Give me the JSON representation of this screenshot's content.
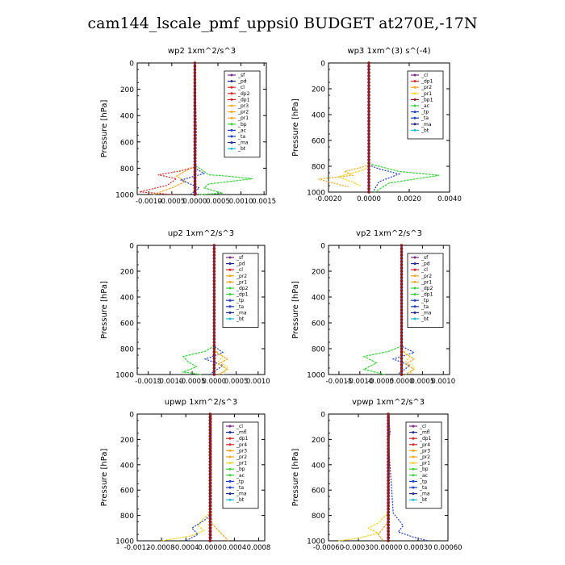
{
  "title": "cam144_lscale_pmf_uppsi0  BUDGET at270E,-17N",
  "colors": {
    "red": "#d62728",
    "orange": "#f5a623",
    "yellow": "#f2d52e",
    "green": "#3dd13d",
    "blue": "#1f3fbf",
    "navy": "#1f2a8a",
    "purple": "#7a2a8a",
    "cyan": "#20c0d0",
    "darkred": "#8b1a1a"
  },
  "chart_data": [
    {
      "type": "line",
      "title": "wp2   1xm^2/s^3",
      "ylabel": "Pressure [hPa]",
      "ylim": [
        1000,
        0
      ],
      "xlim": [
        -0.00125,
        0.00155
      ],
      "xticks": [
        "-0.0010",
        "-0.0005",
        "0.0000",
        "0.0005",
        "0.0010",
        "0.0015"
      ],
      "xtick_vals": [
        -0.001,
        -0.0005,
        0,
        0.0005,
        0.001,
        0.0015
      ],
      "yticks": [
        "0",
        "200",
        "400",
        "600",
        "800",
        "1000"
      ],
      "legend": [
        "_sf",
        "_pd",
        "_cl",
        "_dp2",
        "_dp1",
        "_pr3",
        "_pr2",
        "_pr1",
        "_bp",
        "_ac",
        "_ta",
        "_ma",
        "_bt"
      ],
      "legend_colors": [
        "purple",
        "navy",
        "red",
        "red",
        "red",
        "orange",
        "orange",
        "orange",
        "green",
        "blue",
        "blue",
        "navy",
        "cyan"
      ],
      "series": [
        {
          "color": "green",
          "x": [
            0,
            0,
            0.0001,
            0.0003,
            0.0007,
            0.00125,
            0.0003,
            0.0002,
            0.0006,
            0.0001
          ],
          "y": [
            0,
            780,
            800,
            850,
            860,
            880,
            920,
            950,
            990,
            1000
          ]
        },
        {
          "color": "red",
          "x": [
            0,
            0,
            -0.0003,
            -0.0008,
            -0.0004,
            -0.0006,
            -0.0012,
            -0.0005
          ],
          "y": [
            0,
            790,
            820,
            850,
            880,
            930,
            980,
            1000
          ]
        },
        {
          "color": "orange",
          "x": [
            0,
            0,
            -0.0002,
            -0.0004,
            -0.0002,
            -0.0005,
            -0.0009
          ],
          "y": [
            0,
            790,
            820,
            860,
            900,
            950,
            1000
          ]
        },
        {
          "color": "blue",
          "x": [
            0,
            0,
            0.0002,
            -0.0003,
            0.0001,
            -0.0001
          ],
          "y": [
            0,
            800,
            840,
            890,
            950,
            1000
          ]
        },
        {
          "color": "purple",
          "x": [
            0,
            3e-05,
            2e-05,
            3e-05
          ],
          "y": [
            0,
            500,
            900,
            1000
          ]
        }
      ]
    },
    {
      "type": "line",
      "title": "wp3   1xm^(3) s^(-4)",
      "ylabel": "Pressure [hPa]",
      "ylim": [
        1000,
        0
      ],
      "xlim": [
        -0.002,
        0.004
      ],
      "xticks": [
        "-0.0020",
        "0.0000",
        "0.0020",
        "0.0040"
      ],
      "xtick_vals": [
        -0.002,
        0,
        0.002,
        0.004
      ],
      "yticks": [
        "0",
        "200",
        "400",
        "600",
        "800",
        "1000"
      ],
      "legend": [
        "_cl",
        "_dp1",
        "_pr2",
        "_pr1",
        "_bp1",
        "_ac",
        "_tp",
        "_ta",
        "_ma",
        "_bt"
      ],
      "legend_colors": [
        "purple",
        "red",
        "orange",
        "yellow",
        "darkred",
        "green",
        "blue",
        "blue",
        "navy",
        "cyan"
      ],
      "series": [
        {
          "color": "green",
          "x": [
            0,
            0,
            0.0005,
            0.0015,
            0.0035,
            0.001,
            0.0003
          ],
          "y": [
            0,
            780,
            800,
            840,
            870,
            930,
            1000
          ]
        },
        {
          "color": "orange",
          "x": [
            0,
            0,
            -0.0004,
            -0.0012,
            -0.0008,
            -0.0025,
            -0.001
          ],
          "y": [
            0,
            790,
            810,
            840,
            870,
            900,
            960
          ]
        },
        {
          "color": "yellow",
          "x": [
            0,
            0,
            -0.0003,
            -0.0015,
            -0.0004
          ],
          "y": [
            0,
            800,
            830,
            880,
            950
          ]
        },
        {
          "color": "blue",
          "x": [
            0,
            0,
            0.0005,
            0.0015,
            0.0005,
            0.0002
          ],
          "y": [
            0,
            790,
            820,
            860,
            920,
            1000
          ]
        },
        {
          "color": "red",
          "x": [
            0,
            0
          ],
          "y": [
            0,
            1000
          ]
        }
      ]
    },
    {
      "type": "line",
      "title": "up2   1xm^2/s^3",
      "ylabel": "Pressure [hPa]",
      "ylim": [
        1000,
        0
      ],
      "xlim": [
        -0.00175,
        0.00115
      ],
      "xticks": [
        "-0.0015",
        "-0.0010",
        "-0.0005",
        "0.0000",
        "0.0005",
        "0.0010"
      ],
      "xtick_vals": [
        -0.0015,
        -0.001,
        -0.0005,
        0,
        0.0005,
        0.001
      ],
      "yticks": [
        "0",
        "200",
        "400",
        "600",
        "800",
        "1000"
      ],
      "legend": [
        "_sf",
        "_pd",
        "_cl",
        "_pr2",
        "_pr1",
        "_dp2",
        "_dp1",
        "_tp",
        "_ta",
        "_ma",
        "_bt"
      ],
      "legend_colors": [
        "purple",
        "navy",
        "red",
        "orange",
        "orange",
        "green",
        "green",
        "blue",
        "blue",
        "navy",
        "cyan"
      ],
      "series": [
        {
          "color": "green",
          "x": [
            0,
            0,
            -0.0002,
            -0.0007,
            -0.0006,
            -0.0004,
            -0.0007,
            -0.0003
          ],
          "y": [
            0,
            780,
            820,
            860,
            900,
            940,
            980,
            1000
          ]
        },
        {
          "color": "blue",
          "x": [
            0,
            0,
            0.0002,
            -0.0002,
            0.0002,
            -0.0001
          ],
          "y": [
            0,
            780,
            830,
            880,
            930,
            1000
          ]
        },
        {
          "color": "orange",
          "x": [
            0,
            0,
            0.0001,
            0.0003,
            0.0001,
            0.0003,
            0.0001
          ],
          "y": [
            0,
            800,
            840,
            880,
            920,
            960,
            1000
          ]
        },
        {
          "color": "yellow",
          "x": [
            0,
            0,
            0.0002,
            0.0001,
            0.0003,
            0.0002
          ],
          "y": [
            0,
            820,
            860,
            900,
            940,
            1000
          ]
        },
        {
          "color": "darkred",
          "x": [
            0,
            0
          ],
          "y": [
            0,
            1000
          ]
        }
      ]
    },
    {
      "type": "line",
      "title": "vp2   1xm^2/s^3",
      "ylabel": "Pressure [hPa]",
      "ylim": [
        1000,
        0
      ],
      "xlim": [
        -0.00175,
        0.00115
      ],
      "xticks": [
        "-0.0015",
        "-0.0010",
        "-0.0005",
        "0.0000",
        "0.0005",
        "0.0010"
      ],
      "xtick_vals": [
        -0.0015,
        -0.001,
        -0.0005,
        0,
        0.0005,
        0.001
      ],
      "yticks": [
        "0",
        "200",
        "400",
        "600",
        "800",
        "1000"
      ],
      "legend": [
        "_sf",
        "_pd",
        "_cl",
        "_pr2",
        "_pr1",
        "_dp2",
        "_dp1",
        "_tp",
        "_ta",
        "_ma",
        "_bt"
      ],
      "legend_colors": [
        "purple",
        "navy",
        "red",
        "orange",
        "orange",
        "green",
        "green",
        "blue",
        "blue",
        "navy",
        "cyan"
      ],
      "series": [
        {
          "color": "green",
          "x": [
            0,
            0,
            -0.0003,
            -0.0009,
            -0.0006,
            -0.0009,
            -0.0004
          ],
          "y": [
            0,
            780,
            820,
            860,
            910,
            960,
            1000
          ]
        },
        {
          "color": "blue",
          "x": [
            0,
            0,
            0.0003,
            -0.0002,
            0.0002,
            -0.0001
          ],
          "y": [
            0,
            780,
            830,
            880,
            930,
            1000
          ]
        },
        {
          "color": "orange",
          "x": [
            0,
            0,
            0.0001,
            0.0003,
            0.0001,
            0.0003,
            0.0001
          ],
          "y": [
            0,
            800,
            840,
            880,
            920,
            960,
            1000
          ]
        },
        {
          "color": "yellow",
          "x": [
            0,
            0,
            0.0002,
            0.0001,
            0.0003,
            0.0002
          ],
          "y": [
            0,
            820,
            860,
            900,
            940,
            1000
          ]
        },
        {
          "color": "darkred",
          "x": [
            0,
            0
          ],
          "y": [
            0,
            1000
          ]
        }
      ]
    },
    {
      "type": "line",
      "title": "upwp   1xm^2/s^3",
      "ylabel": "Pressure [hPa]",
      "ylim": [
        1000,
        0
      ],
      "xlim": [
        -0.0012,
        0.0009
      ],
      "xticks": [
        "-0.0012",
        "-0.0008",
        "-0.0004",
        "0.0000",
        "0.0004",
        "0.0008"
      ],
      "xtick_vals": [
        -0.0012,
        -0.0008,
        -0.0004,
        0,
        0.0004,
        0.0008
      ],
      "yticks": [
        "0",
        "200",
        "400",
        "600",
        "800",
        "1000"
      ],
      "legend": [
        "_cl",
        "_mfl",
        "_dp1",
        "_pr4",
        "_pr3",
        "_pr2",
        "_pr1",
        "_bp",
        "_ac",
        "_tp",
        "_ta",
        "_ma",
        "_bt"
      ],
      "legend_colors": [
        "purple",
        "navy",
        "red",
        "red",
        "orange",
        "orange",
        "yellow",
        "green",
        "green",
        "blue",
        "blue",
        "navy",
        "cyan"
      ],
      "series": [
        {
          "color": "yellow",
          "x": [
            0,
            0,
            -0.0001,
            -0.0002,
            -0.0001,
            -0.0003,
            -0.0008
          ],
          "y": [
            0,
            780,
            820,
            880,
            920,
            960,
            1000
          ]
        },
        {
          "color": "blue",
          "x": [
            0,
            0,
            -0.0001,
            -0.0003,
            -0.0002,
            -0.0004
          ],
          "y": [
            0,
            800,
            840,
            900,
            950,
            1000
          ]
        },
        {
          "color": "orange",
          "x": [
            0,
            0,
            0.0001,
            0.0002,
            0.0003
          ],
          "y": [
            0,
            850,
            900,
            950,
            1000
          ]
        },
        {
          "color": "purple",
          "x": [
            0,
            0
          ],
          "y": [
            0,
            1000
          ]
        },
        {
          "color": "darkred",
          "x": [
            2e-05,
            2e-05
          ],
          "y": [
            0,
            1000
          ]
        }
      ]
    },
    {
      "type": "line",
      "title": "vpwp   1xm^2/s^3",
      "ylabel": "Pressure [hPa]",
      "ylim": [
        1000,
        0
      ],
      "xlim": [
        -0.0006,
        0.0006
      ],
      "xticks": [
        "-0.00060",
        "-0.00030",
        "0.00000",
        "0.00030",
        "0.00060"
      ],
      "xtick_vals": [
        -0.0006,
        -0.0003,
        0,
        0.0003,
        0.0006
      ],
      "yticks": [
        "0",
        "200",
        "400",
        "600",
        "800",
        "1000"
      ],
      "legend": [
        "_cl",
        "_mfl",
        "_dp1",
        "_pr4",
        "_pr3",
        "_pr2",
        "_pr1",
        "_bp",
        "_ac",
        "_tp",
        "_ta",
        "_ma",
        "_bt"
      ],
      "legend_colors": [
        "purple",
        "navy",
        "red",
        "red",
        "orange",
        "orange",
        "yellow",
        "green",
        "green",
        "blue",
        "blue",
        "navy",
        "cyan"
      ],
      "series": [
        {
          "color": "yellow",
          "x": [
            0,
            0,
            -5e-05,
            -0.0001,
            -0.0002,
            -0.0001,
            -0.0003,
            -0.0005
          ],
          "y": [
            0,
            780,
            820,
            860,
            900,
            940,
            980,
            1000
          ]
        },
        {
          "color": "blue",
          "x": [
            0,
            2e-05,
            0,
            5e-05,
            0.0001,
            0.00015,
            0.0001,
            0.00025,
            0.0004
          ],
          "y": [
            0,
            150,
            200,
            780,
            830,
            880,
            930,
            970,
            1000
          ]
        },
        {
          "color": "orange",
          "x": [
            0,
            0,
            -5e-05,
            -0.0001,
            -5e-05
          ],
          "y": [
            0,
            850,
            900,
            950,
            1000
          ]
        },
        {
          "color": "purple",
          "x": [
            0,
            0
          ],
          "y": [
            0,
            1000
          ]
        },
        {
          "color": "darkred",
          "x": [
            1e-05,
            1e-05
          ],
          "y": [
            0,
            1000
          ]
        }
      ]
    }
  ]
}
